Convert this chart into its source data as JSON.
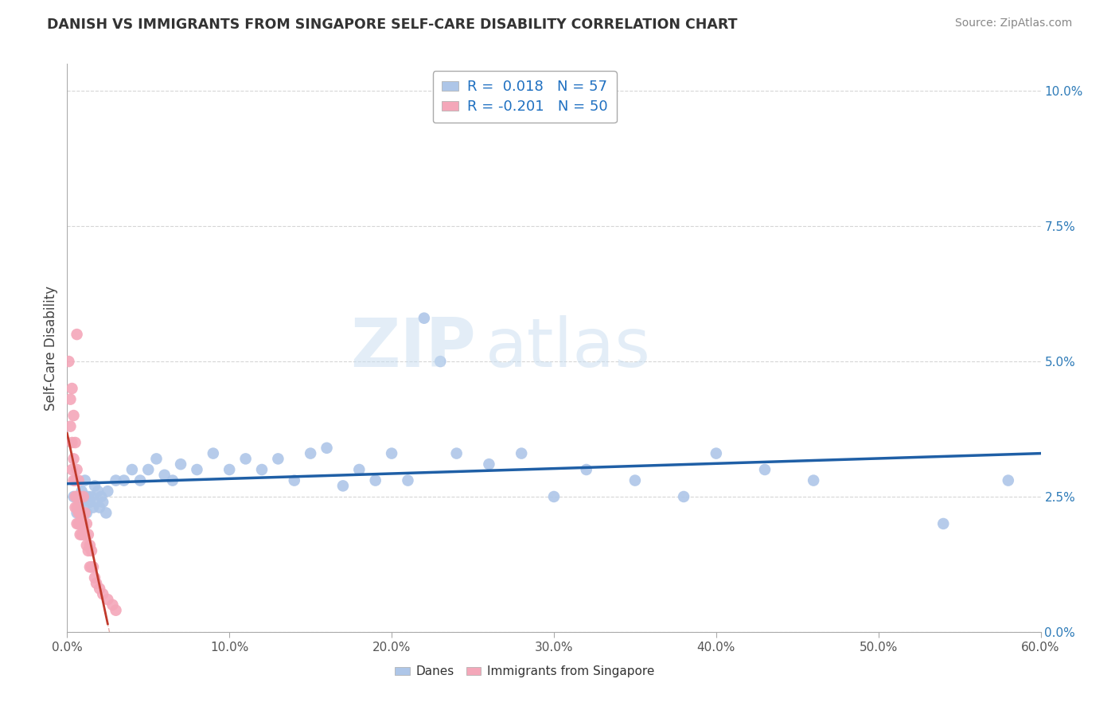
{
  "title": "DANISH VS IMMIGRANTS FROM SINGAPORE SELF-CARE DISABILITY CORRELATION CHART",
  "source": "Source: ZipAtlas.com",
  "ylabel": "Self-Care Disability",
  "xlim": [
    0.0,
    0.6
  ],
  "ylim": [
    0.0,
    0.105
  ],
  "xticks": [
    0.0,
    0.1,
    0.2,
    0.3,
    0.4,
    0.5,
    0.6
  ],
  "xticklabels": [
    "0.0%",
    "10.0%",
    "20.0%",
    "30.0%",
    "40.0%",
    "50.0%",
    "60.0%"
  ],
  "yticks": [
    0.0,
    0.025,
    0.05,
    0.075,
    0.1
  ],
  "yticklabels_right": [
    "0.0%",
    "2.5%",
    "5.0%",
    "7.5%",
    "10.0%"
  ],
  "blue_R": 0.018,
  "blue_N": 57,
  "pink_R": -0.201,
  "pink_N": 50,
  "blue_color": "#aec6e8",
  "pink_color": "#f4a7b9",
  "blue_line_color": "#1f5fa6",
  "pink_line_color": "#c0392b",
  "blue_scatter": [
    [
      0.004,
      0.025
    ],
    [
      0.006,
      0.022
    ],
    [
      0.007,
      0.025
    ],
    [
      0.008,
      0.024
    ],
    [
      0.009,
      0.026
    ],
    [
      0.01,
      0.024
    ],
    [
      0.011,
      0.028
    ],
    [
      0.012,
      0.022
    ],
    [
      0.013,
      0.025
    ],
    [
      0.014,
      0.024
    ],
    [
      0.015,
      0.025
    ],
    [
      0.016,
      0.023
    ],
    [
      0.017,
      0.027
    ],
    [
      0.018,
      0.024
    ],
    [
      0.019,
      0.026
    ],
    [
      0.02,
      0.023
    ],
    [
      0.021,
      0.025
    ],
    [
      0.022,
      0.024
    ],
    [
      0.024,
      0.022
    ],
    [
      0.025,
      0.026
    ],
    [
      0.03,
      0.028
    ],
    [
      0.035,
      0.028
    ],
    [
      0.04,
      0.03
    ],
    [
      0.045,
      0.028
    ],
    [
      0.05,
      0.03
    ],
    [
      0.055,
      0.032
    ],
    [
      0.06,
      0.029
    ],
    [
      0.065,
      0.028
    ],
    [
      0.07,
      0.031
    ],
    [
      0.08,
      0.03
    ],
    [
      0.09,
      0.033
    ],
    [
      0.1,
      0.03
    ],
    [
      0.11,
      0.032
    ],
    [
      0.12,
      0.03
    ],
    [
      0.13,
      0.032
    ],
    [
      0.14,
      0.028
    ],
    [
      0.15,
      0.033
    ],
    [
      0.16,
      0.034
    ],
    [
      0.17,
      0.027
    ],
    [
      0.18,
      0.03
    ],
    [
      0.19,
      0.028
    ],
    [
      0.2,
      0.033
    ],
    [
      0.21,
      0.028
    ],
    [
      0.22,
      0.058
    ],
    [
      0.23,
      0.05
    ],
    [
      0.24,
      0.033
    ],
    [
      0.26,
      0.031
    ],
    [
      0.28,
      0.033
    ],
    [
      0.3,
      0.025
    ],
    [
      0.32,
      0.03
    ],
    [
      0.35,
      0.028
    ],
    [
      0.38,
      0.025
    ],
    [
      0.4,
      0.033
    ],
    [
      0.43,
      0.03
    ],
    [
      0.46,
      0.028
    ],
    [
      0.54,
      0.02
    ],
    [
      0.58,
      0.028
    ]
  ],
  "pink_scatter": [
    [
      0.001,
      0.05
    ],
    [
      0.002,
      0.043
    ],
    [
      0.002,
      0.038
    ],
    [
      0.003,
      0.045
    ],
    [
      0.003,
      0.035
    ],
    [
      0.003,
      0.03
    ],
    [
      0.004,
      0.04
    ],
    [
      0.004,
      0.032
    ],
    [
      0.004,
      0.028
    ],
    [
      0.005,
      0.035
    ],
    [
      0.005,
      0.028
    ],
    [
      0.005,
      0.025
    ],
    [
      0.005,
      0.023
    ],
    [
      0.006,
      0.03
    ],
    [
      0.006,
      0.025
    ],
    [
      0.006,
      0.023
    ],
    [
      0.006,
      0.02
    ],
    [
      0.007,
      0.028
    ],
    [
      0.007,
      0.025
    ],
    [
      0.007,
      0.022
    ],
    [
      0.007,
      0.02
    ],
    [
      0.008,
      0.025
    ],
    [
      0.008,
      0.022
    ],
    [
      0.008,
      0.02
    ],
    [
      0.008,
      0.018
    ],
    [
      0.009,
      0.022
    ],
    [
      0.009,
      0.02
    ],
    [
      0.009,
      0.018
    ],
    [
      0.01,
      0.025
    ],
    [
      0.01,
      0.02
    ],
    [
      0.01,
      0.018
    ],
    [
      0.011,
      0.022
    ],
    [
      0.011,
      0.018
    ],
    [
      0.012,
      0.02
    ],
    [
      0.012,
      0.016
    ],
    [
      0.013,
      0.018
    ],
    [
      0.013,
      0.015
    ],
    [
      0.014,
      0.016
    ],
    [
      0.014,
      0.012
    ],
    [
      0.015,
      0.015
    ],
    [
      0.015,
      0.012
    ],
    [
      0.016,
      0.012
    ],
    [
      0.017,
      0.01
    ],
    [
      0.018,
      0.009
    ],
    [
      0.02,
      0.008
    ],
    [
      0.022,
      0.007
    ],
    [
      0.025,
      0.006
    ],
    [
      0.028,
      0.005
    ],
    [
      0.03,
      0.004
    ],
    [
      0.006,
      0.055
    ]
  ],
  "watermark_zip": "ZIP",
  "watermark_atlas": "atlas",
  "background_color": "#ffffff",
  "grid_color": "#cccccc"
}
